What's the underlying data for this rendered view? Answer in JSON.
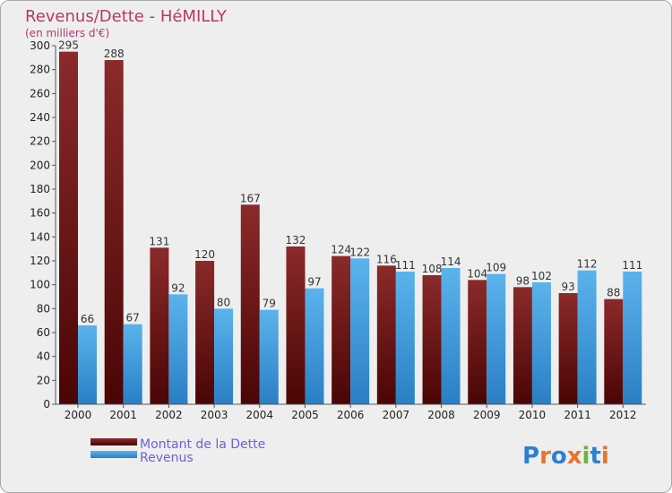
{
  "chart_data": {
    "type": "bar",
    "title": "Revenus/Dette - HéMILLY",
    "subtitle": "(en milliers d'€)",
    "categories": [
      "2000",
      "2001",
      "2002",
      "2003",
      "2004",
      "2005",
      "2006",
      "2007",
      "2008",
      "2009",
      "2010",
      "2011",
      "2012"
    ],
    "series": [
      {
        "name": "Montant de la Dette",
        "color": "#7a1c1c",
        "values": [
          295,
          288,
          131,
          120,
          167,
          132,
          124,
          116,
          108,
          104,
          98,
          93,
          88
        ]
      },
      {
        "name": "Revenus",
        "color": "#4ea3e0",
        "values": [
          66,
          67,
          92,
          80,
          79,
          97,
          122,
          111,
          114,
          109,
          102,
          112,
          111
        ]
      }
    ],
    "ylim": [
      0,
      300
    ],
    "yticks": [
      0,
      20,
      40,
      60,
      80,
      100,
      120,
      140,
      160,
      180,
      200,
      220,
      240,
      260,
      280,
      300
    ],
    "grid": false,
    "legend_position": "bottom-left"
  },
  "logo": {
    "text": "Proxiti"
  }
}
